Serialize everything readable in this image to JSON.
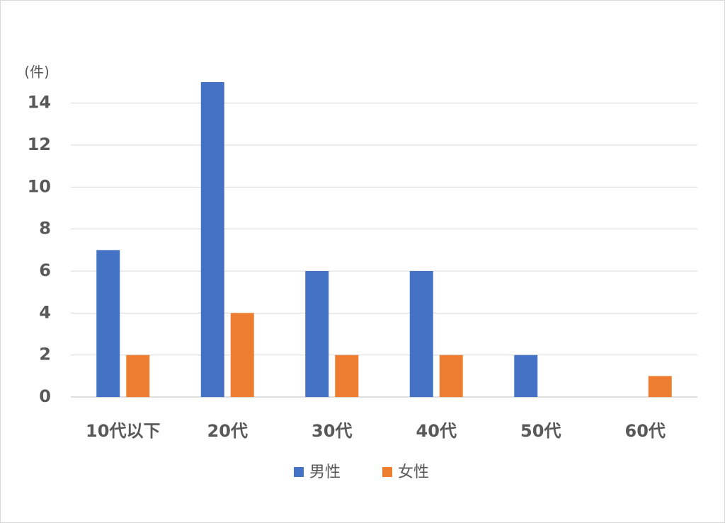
{
  "chart_data": {
    "type": "bar",
    "y_unit_label": "(件)",
    "categories": [
      "10代以下",
      "20代",
      "30代",
      "40代",
      "50代",
      "60代"
    ],
    "series": [
      {
        "name": "男性",
        "color": "#4472c4",
        "values": [
          7,
          15,
          6,
          6,
          2,
          0
        ]
      },
      {
        "name": "女性",
        "color": "#ed7d31",
        "values": [
          2,
          4,
          2,
          2,
          0,
          1
        ]
      }
    ],
    "ylim": [
      0,
      15
    ],
    "yticks": [
      0,
      2,
      4,
      6,
      8,
      10,
      12,
      14
    ],
    "grid": true,
    "legend": "bottom"
  }
}
